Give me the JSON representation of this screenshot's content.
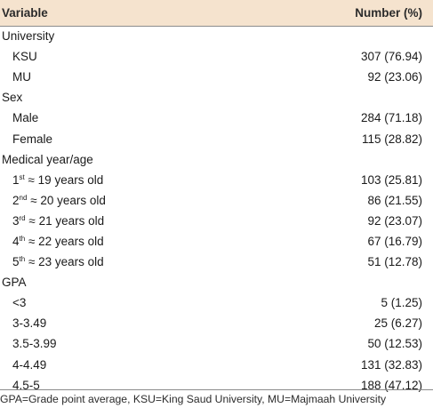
{
  "table": {
    "headers": {
      "variable": "Variable",
      "number": "Number (%)"
    },
    "groups": {
      "university": {
        "title": "University",
        "rows": [
          {
            "label": "KSU",
            "value": "307 (76.94)"
          },
          {
            "label": "MU",
            "value": "92 (23.06)"
          }
        ]
      },
      "sex": {
        "title": "Sex",
        "rows": [
          {
            "label": "Male",
            "value": "284 (71.18)"
          },
          {
            "label": "Female",
            "value": "115 (28.82)"
          }
        ]
      },
      "medical_year": {
        "title": "Medical year/age",
        "rows": [
          {
            "num": "1",
            "sup": "st",
            "rest": "≈ 19 years old",
            "value": "103 (25.81)"
          },
          {
            "num": "2",
            "sup": "nd",
            "rest": "≈ 20 years old",
            "value": "86 (21.55)"
          },
          {
            "num": "3",
            "sup": "rd",
            "rest": "≈ 21 years old",
            "value": "92 (23.07)"
          },
          {
            "num": "4",
            "sup": "th",
            "rest": "≈ 22 years old",
            "value": "67 (16.79)"
          },
          {
            "num": "5",
            "sup": "th",
            "rest": "≈ 23 years old",
            "value": "51 (12.78)"
          }
        ]
      },
      "gpa": {
        "title": "GPA",
        "rows": [
          {
            "label": "<3",
            "value": "5 (1.25)"
          },
          {
            "label": "3-3.49",
            "value": "25 (6.27)"
          },
          {
            "label": "3.5-3.99",
            "value": "50 (12.53)"
          },
          {
            "label": "4-4.49",
            "value": "131 (32.83)"
          },
          {
            "label": "4.5-5",
            "value": "188 (47.12)"
          }
        ]
      }
    },
    "footnote": "GPA=Grade point average, KSU=King Saud University, MU=Majmaah University",
    "colors": {
      "header_bg": "#f5e3ce",
      "rule": "#8c8c8c"
    }
  }
}
